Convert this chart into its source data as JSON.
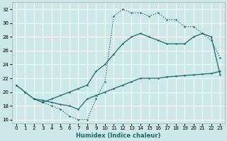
{
  "xlabel": "Humidex (Indice chaleur)",
  "bg_color": "#cce8e8",
  "grid_color": "#ffffff",
  "line_color": "#1a6b6b",
  "xlim": [
    -0.5,
    23.5
  ],
  "ylim": [
    15.5,
    33.0
  ],
  "xticks": [
    0,
    1,
    2,
    3,
    4,
    5,
    6,
    7,
    8,
    9,
    10,
    11,
    12,
    13,
    14,
    15,
    16,
    17,
    18,
    19,
    20,
    21,
    22,
    23
  ],
  "yticks": [
    16,
    18,
    20,
    22,
    24,
    26,
    28,
    30,
    32
  ],
  "line1_x": [
    0,
    1,
    2,
    3,
    4,
    5,
    6,
    7,
    8,
    9,
    10,
    11,
    12,
    13,
    14,
    15,
    16,
    17,
    18,
    19,
    20,
    21,
    22,
    23
  ],
  "line1_y": [
    21.0,
    20.0,
    19.0,
    18.5,
    19.0,
    19.5,
    20.0,
    20.5,
    21.0,
    23.0,
    24.0,
    25.5,
    27.0,
    28.0,
    28.5,
    28.0,
    27.5,
    27.0,
    27.0,
    27.0,
    28.0,
    28.5,
    28.0,
    22.5
  ],
  "line2_x": [
    0,
    1,
    2,
    3,
    4,
    5,
    6,
    7,
    8,
    9,
    10,
    11,
    12,
    13,
    14,
    15,
    16,
    17,
    18,
    19,
    20,
    21,
    22,
    23
  ],
  "line2_y": [
    21.0,
    20.0,
    19.0,
    18.5,
    18.0,
    17.5,
    16.5,
    16.0,
    16.0,
    19.0,
    21.5,
    31.0,
    32.0,
    31.5,
    31.5,
    31.0,
    31.5,
    30.5,
    30.5,
    29.5,
    29.5,
    28.5,
    27.5,
    25.0
  ],
  "line3_x": [
    2,
    3,
    4,
    5,
    6,
    7,
    8,
    9,
    10,
    11,
    12,
    13,
    14,
    15,
    16,
    17,
    18,
    19,
    20,
    21,
    22,
    23
  ],
  "line3_y": [
    19.0,
    18.8,
    18.5,
    18.2,
    18.0,
    17.5,
    19.0,
    19.5,
    20.0,
    20.5,
    21.0,
    21.5,
    22.0,
    22.0,
    22.0,
    22.2,
    22.3,
    22.4,
    22.5,
    22.6,
    22.7,
    23.0
  ]
}
